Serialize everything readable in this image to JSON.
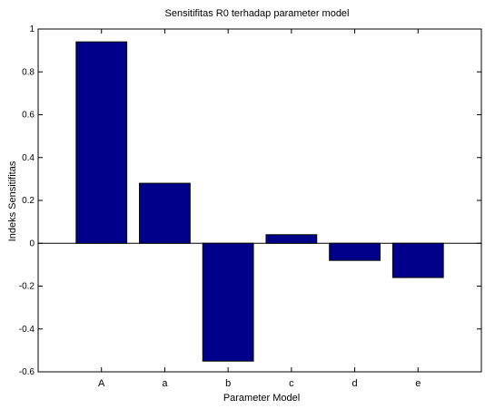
{
  "chart_data": {
    "type": "bar",
    "title": "Sensitifitas R0 terhadap parameter model",
    "xlabel": "Parameter Model",
    "ylabel": "Indeks Sensitifitas",
    "categories": [
      "A",
      "a",
      "b",
      "c",
      "d",
      "e"
    ],
    "values": [
      0.94,
      0.28,
      -0.55,
      0.04,
      -0.08,
      -0.16
    ],
    "ylim": [
      -0.6,
      1
    ],
    "yticks": [
      -0.6,
      -0.4,
      -0.2,
      0,
      0.2,
      0.4,
      0.6,
      0.8,
      1
    ],
    "ytick_labels": [
      "-0.6",
      "-0.4",
      "-0.2",
      "0",
      "0.2",
      "0.4",
      "0.6",
      "0.8",
      "1"
    ],
    "grid": false,
    "legend": "none",
    "colors": {
      "bar_fill": "#00008b",
      "bar_edge": "#000000",
      "axes": "#000000",
      "background": "#ffffff"
    }
  }
}
